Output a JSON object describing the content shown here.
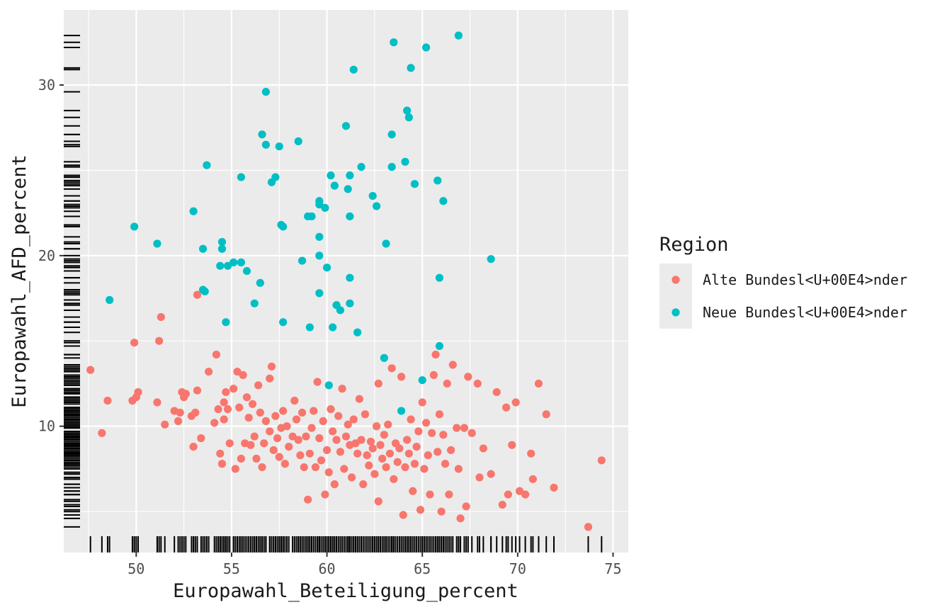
{
  "chart_data": {
    "type": "scatter",
    "xlabel": "Europawahl_Beteiligung_percent",
    "ylabel": "Europawahl_AFD_percent",
    "xlim": [
      46.2,
      75.8
    ],
    "ylim": [
      2.6,
      34.4
    ],
    "x_ticks": [
      50,
      55,
      60,
      65,
      70,
      75
    ],
    "y_ticks": [
      10,
      20,
      30
    ],
    "rug": true,
    "grid": true,
    "legend": {
      "title": "Region",
      "placement": "right",
      "entries": [
        "Alte Bundesl<U+00E4>nder",
        "Neue Bundesl<U+00E4>nder"
      ]
    },
    "colors": {
      "panel": "#ebebeb",
      "grid": "#ffffff",
      "rug": "#000000",
      "text": "#1a1a1a",
      "tick_text": "#4d4d4d"
    },
    "series": [
      {
        "name": "Alte Bundesl<U+00E4>nder",
        "color": "#F8766D",
        "points": [
          [
            47.6,
            13.3
          ],
          [
            48.2,
            9.6
          ],
          [
            48.5,
            11.5
          ],
          [
            49.8,
            11.5
          ],
          [
            49.9,
            14.9
          ],
          [
            50.0,
            11.7
          ],
          [
            50.1,
            12.0
          ],
          [
            51.1,
            11.4
          ],
          [
            51.2,
            15.0
          ],
          [
            51.3,
            16.4
          ],
          [
            51.5,
            10.1
          ],
          [
            52.0,
            10.9
          ],
          [
            52.2,
            10.3
          ],
          [
            52.3,
            10.8
          ],
          [
            52.4,
            12.0
          ],
          [
            52.5,
            11.7
          ],
          [
            52.6,
            11.9
          ],
          [
            52.9,
            10.6
          ],
          [
            53.0,
            8.8
          ],
          [
            53.1,
            10.8
          ],
          [
            53.2,
            17.7
          ],
          [
            53.2,
            12.1
          ],
          [
            53.4,
            9.3
          ],
          [
            53.8,
            13.2
          ],
          [
            54.1,
            10.2
          ],
          [
            54.2,
            14.2
          ],
          [
            54.3,
            11.0
          ],
          [
            54.4,
            8.4
          ],
          [
            54.5,
            7.8
          ],
          [
            54.6,
            11.4
          ],
          [
            54.6,
            10.4
          ],
          [
            54.7,
            12.0
          ],
          [
            54.8,
            11.0
          ],
          [
            54.9,
            9.0
          ],
          [
            55.1,
            12.2
          ],
          [
            55.2,
            7.5
          ],
          [
            55.3,
            13.2
          ],
          [
            55.4,
            11.1
          ],
          [
            55.5,
            8.1
          ],
          [
            55.6,
            13.0
          ],
          [
            55.7,
            9.0
          ],
          [
            55.8,
            11.7
          ],
          [
            55.9,
            10.5
          ],
          [
            56.0,
            8.9
          ],
          [
            56.1,
            11.3
          ],
          [
            56.2,
            9.4
          ],
          [
            56.3,
            8.1
          ],
          [
            56.4,
            12.4
          ],
          [
            56.5,
            10.8
          ],
          [
            56.6,
            7.6
          ],
          [
            56.7,
            9.0
          ],
          [
            56.8,
            10.3
          ],
          [
            57.0,
            9.7
          ],
          [
            57.0,
            12.8
          ],
          [
            57.1,
            13.5
          ],
          [
            57.2,
            8.6
          ],
          [
            57.3,
            10.6
          ],
          [
            57.4,
            9.3
          ],
          [
            57.5,
            8.2
          ],
          [
            57.6,
            9.9
          ],
          [
            57.7,
            10.9
          ],
          [
            57.8,
            7.8
          ],
          [
            57.9,
            10.0
          ],
          [
            58.0,
            8.8
          ],
          [
            58.2,
            9.4
          ],
          [
            58.3,
            11.5
          ],
          [
            58.4,
            10.4
          ],
          [
            58.5,
            9.2
          ],
          [
            58.6,
            8.3
          ],
          [
            58.7,
            10.8
          ],
          [
            58.8,
            7.6
          ],
          [
            58.9,
            9.4
          ],
          [
            59.0,
            5.7
          ],
          [
            59.1,
            8.4
          ],
          [
            59.2,
            9.9
          ],
          [
            59.3,
            10.9
          ],
          [
            59.4,
            7.6
          ],
          [
            59.5,
            12.6
          ],
          [
            59.6,
            9.3
          ],
          [
            59.7,
            8.0
          ],
          [
            59.8,
            10.3
          ],
          [
            59.9,
            6.0
          ],
          [
            60.0,
            8.6
          ],
          [
            60.1,
            7.3
          ],
          [
            60.2,
            11.0
          ],
          [
            60.3,
            9.7
          ],
          [
            60.4,
            6.6
          ],
          [
            60.5,
            9.2
          ],
          [
            60.6,
            10.6
          ],
          [
            60.7,
            8.5
          ],
          [
            60.8,
            12.2
          ],
          [
            60.9,
            7.5
          ],
          [
            61.0,
            9.4
          ],
          [
            61.1,
            10.1
          ],
          [
            61.2,
            8.9
          ],
          [
            61.3,
            7.0
          ],
          [
            61.4,
            10.4
          ],
          [
            61.5,
            9.0
          ],
          [
            61.6,
            8.4
          ],
          [
            61.7,
            11.6
          ],
          [
            61.8,
            9.2
          ],
          [
            61.9,
            6.6
          ],
          [
            62.0,
            10.7
          ],
          [
            62.1,
            8.3
          ],
          [
            62.2,
            7.7
          ],
          [
            62.3,
            9.1
          ],
          [
            62.4,
            8.7
          ],
          [
            62.5,
            7.2
          ],
          [
            62.6,
            10.0
          ],
          [
            62.7,
            12.5
          ],
          [
            62.7,
            5.6
          ],
          [
            62.8,
            8.9
          ],
          [
            62.9,
            8.1
          ],
          [
            63.0,
            9.5
          ],
          [
            63.1,
            7.6
          ],
          [
            63.2,
            10.1
          ],
          [
            63.3,
            8.4
          ],
          [
            63.4,
            13.4
          ],
          [
            63.5,
            6.9
          ],
          [
            63.6,
            9.0
          ],
          [
            63.7,
            7.9
          ],
          [
            63.8,
            8.7
          ],
          [
            63.9,
            12.9
          ],
          [
            64.0,
            4.8
          ],
          [
            64.1,
            7.6
          ],
          [
            64.2,
            9.2
          ],
          [
            64.3,
            8.4
          ],
          [
            64.4,
            10.4
          ],
          [
            64.5,
            6.2
          ],
          [
            64.6,
            7.8
          ],
          [
            64.7,
            8.8
          ],
          [
            64.8,
            9.7
          ],
          [
            64.9,
            5.1
          ],
          [
            65.0,
            11.4
          ],
          [
            65.1,
            7.5
          ],
          [
            65.2,
            10.2
          ],
          [
            65.3,
            8.3
          ],
          [
            65.4,
            6.0
          ],
          [
            65.5,
            9.6
          ],
          [
            65.6,
            13.0
          ],
          [
            65.7,
            14.2
          ],
          [
            65.8,
            8.5
          ],
          [
            65.9,
            10.7
          ],
          [
            66.0,
            5.0
          ],
          [
            66.1,
            9.5
          ],
          [
            66.2,
            7.8
          ],
          [
            66.3,
            12.5
          ],
          [
            66.4,
            6.0
          ],
          [
            66.5,
            8.6
          ],
          [
            66.6,
            13.6
          ],
          [
            66.8,
            9.9
          ],
          [
            66.9,
            7.5
          ],
          [
            67.0,
            4.6
          ],
          [
            67.2,
            9.9
          ],
          [
            67.3,
            5.3
          ],
          [
            67.4,
            12.9
          ],
          [
            67.6,
            9.6
          ],
          [
            67.9,
            12.5
          ],
          [
            68.0,
            7.0
          ],
          [
            68.2,
            8.7
          ],
          [
            68.6,
            7.2
          ],
          [
            68.9,
            12.0
          ],
          [
            69.2,
            5.4
          ],
          [
            69.4,
            11.1
          ],
          [
            69.5,
            6.0
          ],
          [
            69.7,
            8.9
          ],
          [
            69.9,
            11.4
          ],
          [
            70.1,
            6.2
          ],
          [
            70.4,
            6.0
          ],
          [
            70.7,
            8.4
          ],
          [
            70.8,
            6.9
          ],
          [
            71.1,
            12.5
          ],
          [
            71.5,
            10.7
          ],
          [
            71.9,
            6.4
          ],
          [
            73.7,
            4.1
          ],
          [
            74.4,
            8.0
          ]
        ]
      },
      {
        "name": "Neue Bundesl<U+00E4>nder",
        "color": "#00BFC4",
        "points": [
          [
            48.6,
            17.4
          ],
          [
            49.9,
            21.7
          ],
          [
            51.1,
            20.7
          ],
          [
            53.0,
            22.6
          ],
          [
            53.5,
            20.4
          ],
          [
            53.5,
            18.0
          ],
          [
            53.6,
            17.9
          ],
          [
            53.7,
            25.3
          ],
          [
            54.4,
            19.4
          ],
          [
            54.5,
            20.8
          ],
          [
            54.5,
            20.4
          ],
          [
            54.7,
            16.1
          ],
          [
            54.8,
            19.4
          ],
          [
            55.1,
            19.6
          ],
          [
            55.5,
            24.6
          ],
          [
            55.5,
            19.6
          ],
          [
            55.8,
            19.1
          ],
          [
            56.2,
            17.2
          ],
          [
            56.5,
            18.4
          ],
          [
            56.6,
            27.1
          ],
          [
            56.8,
            26.5
          ],
          [
            56.8,
            29.6
          ],
          [
            57.1,
            24.3
          ],
          [
            57.3,
            24.6
          ],
          [
            57.5,
            26.4
          ],
          [
            57.6,
            21.8
          ],
          [
            57.7,
            21.7
          ],
          [
            57.7,
            16.1
          ],
          [
            58.5,
            26.7
          ],
          [
            58.7,
            19.7
          ],
          [
            59.0,
            22.3
          ],
          [
            59.1,
            15.8
          ],
          [
            59.2,
            22.3
          ],
          [
            59.6,
            23.2
          ],
          [
            59.6,
            23.0
          ],
          [
            59.6,
            21.1
          ],
          [
            59.6,
            20.0
          ],
          [
            59.6,
            17.8
          ],
          [
            59.9,
            22.8
          ],
          [
            60.0,
            19.3
          ],
          [
            60.1,
            12.4
          ],
          [
            60.2,
            24.7
          ],
          [
            60.3,
            15.8
          ],
          [
            60.4,
            24.1
          ],
          [
            60.5,
            17.1
          ],
          [
            60.7,
            16.8
          ],
          [
            61.0,
            27.6
          ],
          [
            61.1,
            23.9
          ],
          [
            61.2,
            24.7
          ],
          [
            61.2,
            22.3
          ],
          [
            61.2,
            18.7
          ],
          [
            61.2,
            17.2
          ],
          [
            61.4,
            30.9
          ],
          [
            61.6,
            15.5
          ],
          [
            61.8,
            25.2
          ],
          [
            62.4,
            23.5
          ],
          [
            62.6,
            22.9
          ],
          [
            63.1,
            20.7
          ],
          [
            63.0,
            14.0
          ],
          [
            63.4,
            27.1
          ],
          [
            63.4,
            25.2
          ],
          [
            63.5,
            32.5
          ],
          [
            63.9,
            10.9
          ],
          [
            64.1,
            25.5
          ],
          [
            64.2,
            28.5
          ],
          [
            64.3,
            28.1
          ],
          [
            64.4,
            31.0
          ],
          [
            64.6,
            24.2
          ],
          [
            65.0,
            12.7
          ],
          [
            65.2,
            32.2
          ],
          [
            65.8,
            24.4
          ],
          [
            65.9,
            18.7
          ],
          [
            65.9,
            14.7
          ],
          [
            66.1,
            23.2
          ],
          [
            66.9,
            32.9
          ],
          [
            68.6,
            19.8
          ]
        ]
      }
    ]
  }
}
